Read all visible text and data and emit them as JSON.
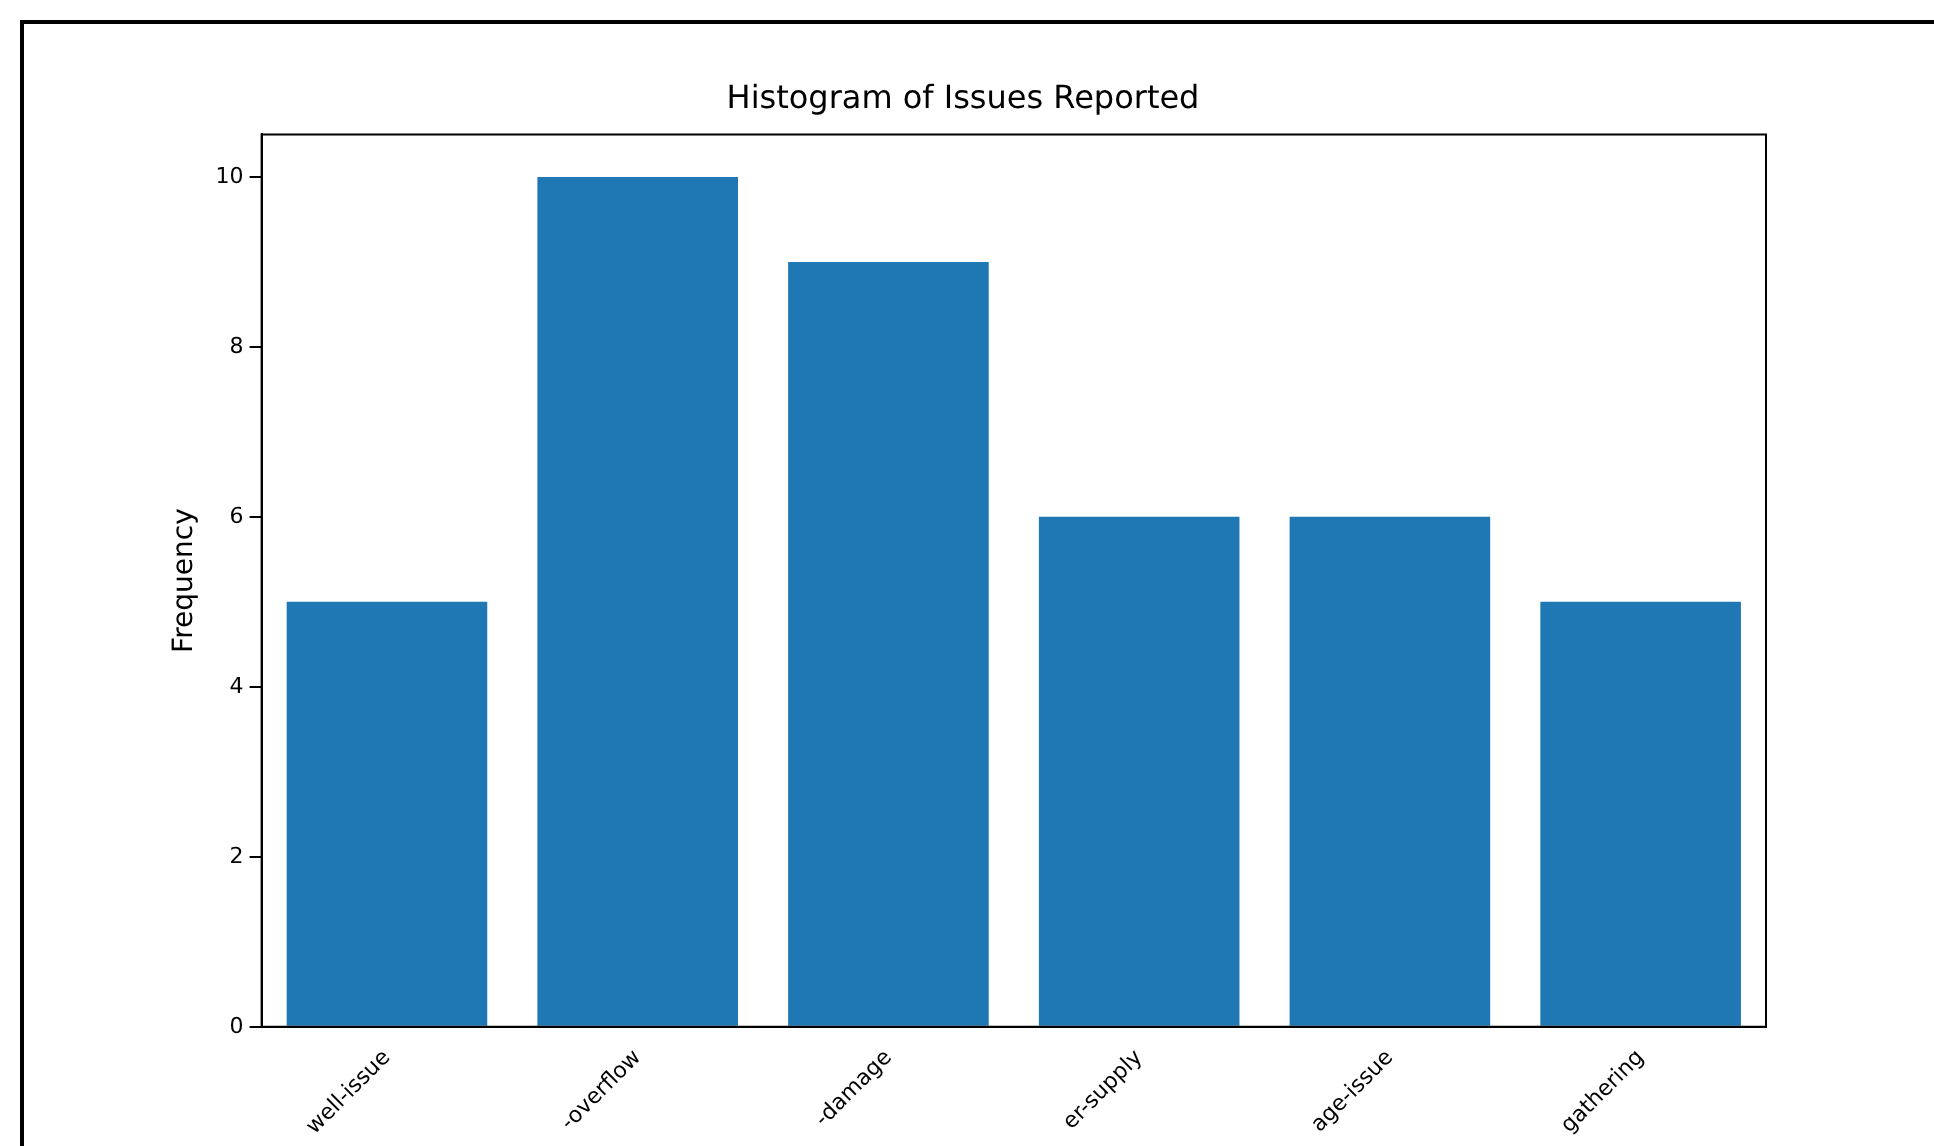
{
  "chart_data": {
    "type": "bar",
    "title": "Histogram of Issues Reported",
    "ylabel": "Frequency",
    "categories": [
      "well-issue",
      "-overflow",
      "-damage",
      "er-supply",
      "age-issue",
      "gathering"
    ],
    "values": [
      5,
      10,
      9,
      6,
      6,
      5
    ],
    "color": "#1f77b4",
    "ylim": [
      0,
      10.5
    ],
    "yticks": [
      0,
      2,
      4,
      6,
      8,
      10
    ],
    "grid": false,
    "legend": false
  }
}
